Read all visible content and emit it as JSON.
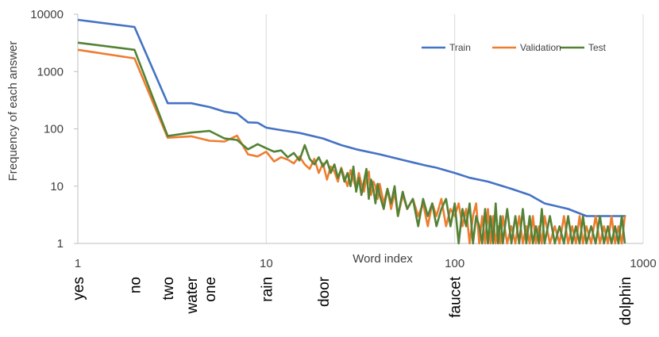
{
  "chart_data": {
    "type": "line",
    "xscale": "log",
    "yscale": "log",
    "xlim": [
      1,
      1000
    ],
    "ylim": [
      1,
      10000
    ],
    "xlabel": "Word index",
    "ylabel": "Frequency of each answer",
    "x_ticks": [
      "1",
      "10",
      "100",
      "1000"
    ],
    "y_ticks": [
      "1",
      "10",
      "100",
      "1000",
      "10000"
    ],
    "grid": "vertical",
    "legend_position": "top-right",
    "series": [
      {
        "name": "Train",
        "color": "#4472C4",
        "points": [
          [
            1,
            8000
          ],
          [
            2,
            6000
          ],
          [
            3,
            280
          ],
          [
            4,
            280
          ],
          [
            5,
            240
          ],
          [
            6,
            200
          ],
          [
            7,
            185
          ],
          [
            8,
            130
          ],
          [
            9,
            128
          ],
          [
            10,
            105
          ],
          [
            12,
            95
          ],
          [
            15,
            85
          ],
          [
            20,
            68
          ],
          [
            25,
            52
          ],
          [
            30,
            44
          ],
          [
            40,
            36
          ],
          [
            50,
            30
          ],
          [
            60,
            26
          ],
          [
            70,
            23
          ],
          [
            80,
            21
          ],
          [
            100,
            17
          ],
          [
            120,
            14
          ],
          [
            150,
            12
          ],
          [
            200,
            9
          ],
          [
            250,
            7
          ],
          [
            300,
            5
          ],
          [
            400,
            4
          ],
          [
            500,
            3
          ],
          [
            600,
            3
          ],
          [
            700,
            3
          ],
          [
            810,
            3
          ]
        ]
      },
      {
        "name": "Validation",
        "color": "#ED7D31",
        "points": [
          [
            1,
            2400
          ],
          [
            2,
            1700
          ],
          [
            3,
            70
          ],
          [
            4,
            74
          ],
          [
            5,
            62
          ],
          [
            6,
            60
          ],
          [
            7,
            76
          ],
          [
            8,
            36
          ],
          [
            9,
            33
          ],
          [
            10,
            40
          ],
          [
            11,
            27
          ],
          [
            12,
            32
          ],
          [
            13,
            29
          ],
          [
            14,
            25
          ],
          [
            15,
            33
          ],
          [
            16,
            24
          ],
          [
            17,
            20
          ],
          [
            18,
            30
          ],
          [
            19,
            17
          ],
          [
            20,
            25
          ],
          [
            21,
            13
          ],
          [
            22,
            22
          ],
          [
            23,
            18
          ],
          [
            24,
            12
          ],
          [
            25,
            21
          ],
          [
            26,
            14
          ],
          [
            27,
            10
          ],
          [
            28,
            19
          ],
          [
            29,
            13
          ],
          [
            30,
            9
          ],
          [
            31,
            17
          ],
          [
            32,
            11
          ],
          [
            33,
            8
          ],
          [
            34,
            14
          ],
          [
            35,
            18
          ],
          [
            36,
            7
          ],
          [
            37,
            12
          ],
          [
            38,
            10
          ],
          [
            39,
            6
          ],
          [
            40,
            11
          ],
          [
            42,
            5
          ],
          [
            44,
            9
          ],
          [
            46,
            4
          ],
          [
            48,
            8
          ],
          [
            50,
            3
          ],
          [
            53,
            7
          ],
          [
            56,
            4
          ],
          [
            60,
            6
          ],
          [
            64,
            3
          ],
          [
            68,
            5
          ],
          [
            72,
            2
          ],
          [
            76,
            5
          ],
          [
            80,
            3
          ],
          [
            85,
            6
          ],
          [
            90,
            2
          ],
          [
            95,
            4
          ],
          [
            100,
            3
          ],
          [
            105,
            5
          ],
          [
            110,
            2
          ],
          [
            115,
            4
          ],
          [
            120,
            1
          ],
          [
            125,
            3
          ],
          [
            130,
            5
          ],
          [
            135,
            1
          ],
          [
            140,
            3
          ],
          [
            145,
            1
          ],
          [
            150,
            4
          ],
          [
            155,
            1
          ],
          [
            160,
            3
          ],
          [
            165,
            1
          ],
          [
            170,
            2
          ],
          [
            175,
            1
          ],
          [
            180,
            3
          ],
          [
            190,
            1
          ],
          [
            200,
            2
          ],
          [
            210,
            1
          ],
          [
            220,
            3
          ],
          [
            230,
            1
          ],
          [
            240,
            2
          ],
          [
            250,
            1
          ],
          [
            260,
            3
          ],
          [
            270,
            1
          ],
          [
            280,
            2
          ],
          [
            290,
            1
          ],
          [
            300,
            3
          ],
          [
            320,
            1
          ],
          [
            340,
            2
          ],
          [
            360,
            1
          ],
          [
            380,
            3
          ],
          [
            400,
            1
          ],
          [
            420,
            2
          ],
          [
            440,
            1
          ],
          [
            460,
            3
          ],
          [
            480,
            1
          ],
          [
            500,
            2
          ],
          [
            530,
            1
          ],
          [
            560,
            3
          ],
          [
            590,
            1
          ],
          [
            620,
            2
          ],
          [
            650,
            1
          ],
          [
            680,
            3
          ],
          [
            710,
            1
          ],
          [
            740,
            2
          ],
          [
            770,
            1
          ],
          [
            800,
            3
          ]
        ]
      },
      {
        "name": "Test",
        "color": "#548235",
        "points": [
          [
            1,
            3200
          ],
          [
            2,
            2400
          ],
          [
            3,
            75
          ],
          [
            4,
            86
          ],
          [
            5,
            92
          ],
          [
            6,
            68
          ],
          [
            7,
            64
          ],
          [
            8,
            44
          ],
          [
            9,
            54
          ],
          [
            10,
            46
          ],
          [
            11,
            40
          ],
          [
            12,
            42
          ],
          [
            13,
            32
          ],
          [
            14,
            38
          ],
          [
            15,
            28
          ],
          [
            16,
            52
          ],
          [
            17,
            30
          ],
          [
            18,
            24
          ],
          [
            19,
            32
          ],
          [
            20,
            22
          ],
          [
            21,
            28
          ],
          [
            22,
            17
          ],
          [
            23,
            24
          ],
          [
            24,
            14
          ],
          [
            25,
            20
          ],
          [
            26,
            12
          ],
          [
            27,
            17
          ],
          [
            28,
            10
          ],
          [
            29,
            22
          ],
          [
            30,
            8
          ],
          [
            31,
            14
          ],
          [
            32,
            7
          ],
          [
            33,
            12
          ],
          [
            34,
            20
          ],
          [
            35,
            6
          ],
          [
            36,
            13
          ],
          [
            37,
            9
          ],
          [
            38,
            5
          ],
          [
            39,
            11
          ],
          [
            40,
            7
          ],
          [
            42,
            4
          ],
          [
            44,
            9
          ],
          [
            46,
            5
          ],
          [
            48,
            10
          ],
          [
            50,
            3
          ],
          [
            53,
            8
          ],
          [
            56,
            4
          ],
          [
            60,
            6
          ],
          [
            64,
            2
          ],
          [
            68,
            6
          ],
          [
            72,
            3
          ],
          [
            76,
            5
          ],
          [
            80,
            2
          ],
          [
            85,
            4
          ],
          [
            90,
            6
          ],
          [
            95,
            2
          ],
          [
            100,
            5
          ],
          [
            105,
            1
          ],
          [
            110,
            4
          ],
          [
            115,
            2
          ],
          [
            120,
            5
          ],
          [
            125,
            1
          ],
          [
            130,
            3
          ],
          [
            135,
            2
          ],
          [
            140,
            1
          ],
          [
            145,
            4
          ],
          [
            150,
            1
          ],
          [
            155,
            3
          ],
          [
            160,
            1
          ],
          [
            165,
            5
          ],
          [
            170,
            1
          ],
          [
            175,
            3
          ],
          [
            180,
            1
          ],
          [
            190,
            4
          ],
          [
            200,
            1
          ],
          [
            210,
            3
          ],
          [
            220,
            1
          ],
          [
            230,
            4
          ],
          [
            240,
            1
          ],
          [
            250,
            3
          ],
          [
            260,
            1
          ],
          [
            270,
            2
          ],
          [
            280,
            1
          ],
          [
            290,
            4
          ],
          [
            300,
            1
          ],
          [
            320,
            3
          ],
          [
            340,
            1
          ],
          [
            360,
            2
          ],
          [
            380,
            1
          ],
          [
            400,
            3
          ],
          [
            420,
            1
          ],
          [
            440,
            2
          ],
          [
            460,
            1
          ],
          [
            480,
            3
          ],
          [
            500,
            1
          ],
          [
            530,
            2
          ],
          [
            560,
            1
          ],
          [
            590,
            3
          ],
          [
            620,
            1
          ],
          [
            650,
            2
          ],
          [
            680,
            1
          ],
          [
            710,
            2
          ],
          [
            740,
            1
          ],
          [
            770,
            3
          ],
          [
            800,
            1
          ]
        ]
      }
    ],
    "word_labels": [
      {
        "text": "yes",
        "x": 1
      },
      {
        "text": "no",
        "x": 2
      },
      {
        "text": "two",
        "x": 3
      },
      {
        "text": "water",
        "x": 4
      },
      {
        "text": "one",
        "x": 5
      },
      {
        "text": "rain",
        "x": 10
      },
      {
        "text": "door",
        "x": 20
      },
      {
        "text": "faucet",
        "x": 100
      },
      {
        "text": "dolphin",
        "x": 800
      }
    ]
  }
}
